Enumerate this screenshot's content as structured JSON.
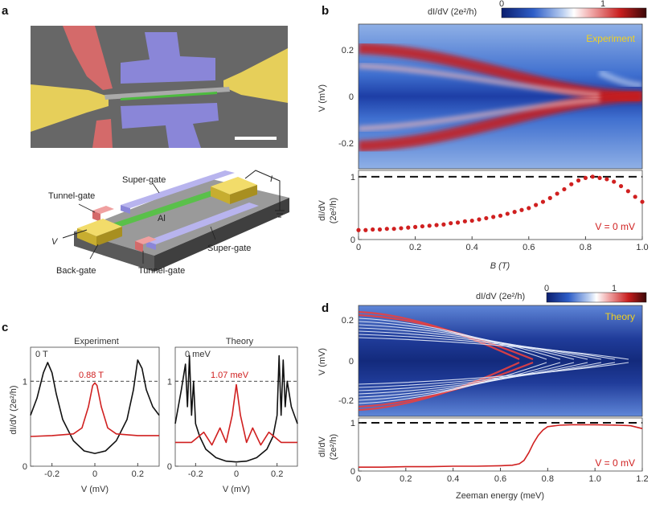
{
  "panels": {
    "a": {
      "letter": "a",
      "device_labels": {
        "super_gate_top": "Super-gate",
        "tunnel_gate_left": "Tunnel-gate",
        "al": "Al",
        "super_gate_bottom": "Super-gate",
        "v": "V",
        "back_gate": "Back-gate",
        "tunnel_gate_bottom": "Tunnel-gate",
        "current": "I"
      },
      "colors": {
        "sem_bg": "#6f6f6f",
        "red_gate": "#d46a6a",
        "yellow_lead": "#e6cf5a",
        "purple_gate": "#8a86d8",
        "green_wire": "#4cbb3e",
        "al_green": "#5ac04a",
        "substrate": "#8a8a8a"
      }
    },
    "b": {
      "letter": "b",
      "colorbar": {
        "label": "dI/dV (2e²/h)",
        "min_label": "0",
        "max_label": "1"
      },
      "map_label": "Experiment",
      "map_ylabel": "V (mV)",
      "map_yticks": [
        "0.2",
        "0",
        "-0.2"
      ],
      "trace_ylabel_1": "dI/dV",
      "trace_ylabel_2": "(2e²/h)",
      "trace_yticks": [
        "1",
        "0"
      ],
      "trace_xticks": [
        "0",
        "0.2",
        "0.4",
        "0.6",
        "0.8",
        "1.0"
      ],
      "trace_xlabel": "B (T)",
      "trace_annotation": "V = 0 mV"
    },
    "c": {
      "letter": "c",
      "left_title": "Experiment",
      "right_title": "Theory",
      "left_label_black": "0 T",
      "left_label_red": "0.88 T",
      "right_label_black": "0 meV",
      "right_label_red": "1.07 meV",
      "ylabel": "dI/dV (2e²/h)",
      "yticks": [
        "1",
        "0"
      ],
      "xticks": [
        "-0.2",
        "0",
        "0.2"
      ],
      "xlabel": "V (mV)"
    },
    "d": {
      "letter": "d",
      "colorbar": {
        "label": "dI/dV (2e²/h)",
        "min_label": "0",
        "max_label": "1"
      },
      "map_label": "Theory",
      "map_ylabel": "V (mV)",
      "map_yticks": [
        "0.2",
        "0",
        "-0.2"
      ],
      "trace_ylabel_1": "dI/dV",
      "trace_ylabel_2": "(2e²/h)",
      "trace_yticks": [
        "1",
        "0"
      ],
      "trace_xticks": [
        "0",
        "0.2",
        "0.4",
        "0.6",
        "0.8",
        "1.0",
        "1.2"
      ],
      "trace_xlabel": "Zeeman energy (meV)",
      "trace_annotation": "V = 0 mV"
    }
  },
  "chart_data": [
    {
      "type": "scatter",
      "panel": "b-lower",
      "xlabel": "B (T)",
      "ylabel": "dI/dV (2e²/h)",
      "xlim": [
        0,
        1.0
      ],
      "ylim": [
        0,
        1.1
      ],
      "reference_line": 1,
      "annotation": "V = 0 mV",
      "series": [
        {
          "color": "#d02020",
          "x": [
            0,
            0.025,
            0.05,
            0.075,
            0.1,
            0.125,
            0.15,
            0.175,
            0.2,
            0.225,
            0.25,
            0.275,
            0.3,
            0.325,
            0.35,
            0.375,
            0.4,
            0.425,
            0.45,
            0.475,
            0.5,
            0.525,
            0.55,
            0.575,
            0.6,
            0.625,
            0.65,
            0.675,
            0.7,
            0.725,
            0.75,
            0.775,
            0.8,
            0.825,
            0.85,
            0.875,
            0.9,
            0.925,
            0.95,
            0.975,
            1.0
          ],
          "y": [
            0.15,
            0.15,
            0.16,
            0.16,
            0.17,
            0.17,
            0.18,
            0.19,
            0.2,
            0.21,
            0.22,
            0.23,
            0.24,
            0.26,
            0.27,
            0.29,
            0.3,
            0.32,
            0.34,
            0.36,
            0.38,
            0.41,
            0.44,
            0.47,
            0.5,
            0.55,
            0.6,
            0.66,
            0.73,
            0.8,
            0.88,
            0.94,
            0.98,
            1.0,
            0.98,
            0.96,
            0.92,
            0.85,
            0.77,
            0.68,
            0.6
          ]
        }
      ]
    },
    {
      "type": "line",
      "panel": "d-lower",
      "xlabel": "Zeeman energy (meV)",
      "ylabel": "dI/dV (2e²/h)",
      "xlim": [
        0,
        1.2
      ],
      "ylim": [
        0,
        1.1
      ],
      "reference_line": 1,
      "annotation": "V = 0 mV",
      "series": [
        {
          "color": "#d02020",
          "x": [
            0,
            0.1,
            0.2,
            0.3,
            0.4,
            0.5,
            0.6,
            0.65,
            0.68,
            0.7,
            0.72,
            0.74,
            0.76,
            0.78,
            0.8,
            0.85,
            0.9,
            1.0,
            1.1,
            1.15,
            1.2
          ],
          "y": [
            0.08,
            0.08,
            0.09,
            0.09,
            0.1,
            0.1,
            0.11,
            0.12,
            0.15,
            0.22,
            0.38,
            0.58,
            0.74,
            0.85,
            0.92,
            0.95,
            0.96,
            0.96,
            0.95,
            0.94,
            0.88
          ]
        }
      ]
    },
    {
      "type": "line",
      "panel": "c-left",
      "title": "Experiment",
      "xlabel": "V (mV)",
      "ylabel": "dI/dV (2e²/h)",
      "xlim": [
        -0.3,
        0.3
      ],
      "ylim": [
        0,
        1.4
      ],
      "reference_line": 1,
      "series": [
        {
          "name": "0 T",
          "color": "#111111",
          "x": [
            -0.3,
            -0.27,
            -0.24,
            -0.22,
            -0.2,
            -0.18,
            -0.15,
            -0.1,
            -0.05,
            0,
            0.05,
            0.1,
            0.15,
            0.18,
            0.2,
            0.22,
            0.24,
            0.27,
            0.3
          ],
          "y": [
            0.6,
            0.8,
            1.1,
            1.22,
            1.1,
            0.85,
            0.55,
            0.3,
            0.18,
            0.15,
            0.18,
            0.3,
            0.55,
            0.9,
            1.25,
            1.15,
            0.9,
            0.7,
            0.6
          ]
        },
        {
          "name": "0.88 T",
          "color": "#d02020",
          "x": [
            -0.3,
            -0.2,
            -0.1,
            -0.06,
            -0.03,
            -0.01,
            0,
            0.01,
            0.03,
            0.06,
            0.1,
            0.2,
            0.3
          ],
          "y": [
            0.35,
            0.36,
            0.38,
            0.45,
            0.7,
            0.95,
            0.98,
            0.95,
            0.7,
            0.45,
            0.38,
            0.36,
            0.36
          ]
        }
      ]
    },
    {
      "type": "line",
      "panel": "c-right",
      "title": "Theory",
      "xlabel": "V (mV)",
      "ylabel": "dI/dV (2e²/h)",
      "xlim": [
        -0.3,
        0.3
      ],
      "ylim": [
        0,
        1.4
      ],
      "reference_line": 1,
      "series": [
        {
          "name": "0 meV",
          "color": "#111111",
          "x": [
            -0.3,
            -0.27,
            -0.25,
            -0.24,
            -0.23,
            -0.22,
            -0.21,
            -0.2,
            -0.18,
            -0.15,
            -0.1,
            -0.05,
            0,
            0.05,
            0.1,
            0.15,
            0.18,
            0.2,
            0.21,
            0.22,
            0.23,
            0.24,
            0.25,
            0.27,
            0.3
          ],
          "y": [
            0.5,
            0.9,
            1.2,
            0.7,
            1.3,
            0.6,
            1.0,
            0.5,
            0.35,
            0.2,
            0.1,
            0.06,
            0.05,
            0.06,
            0.1,
            0.2,
            0.35,
            0.6,
            1.3,
            0.6,
            1.25,
            0.7,
            1.0,
            0.7,
            0.5
          ]
        },
        {
          "name": "1.07 meV",
          "color": "#d02020",
          "x": [
            -0.3,
            -0.22,
            -0.16,
            -0.12,
            -0.08,
            -0.05,
            -0.02,
            0,
            0.02,
            0.05,
            0.08,
            0.12,
            0.16,
            0.22,
            0.3
          ],
          "y": [
            0.28,
            0.28,
            0.4,
            0.25,
            0.45,
            0.28,
            0.6,
            0.96,
            0.6,
            0.28,
            0.45,
            0.25,
            0.4,
            0.28,
            0.28
          ]
        }
      ]
    }
  ]
}
